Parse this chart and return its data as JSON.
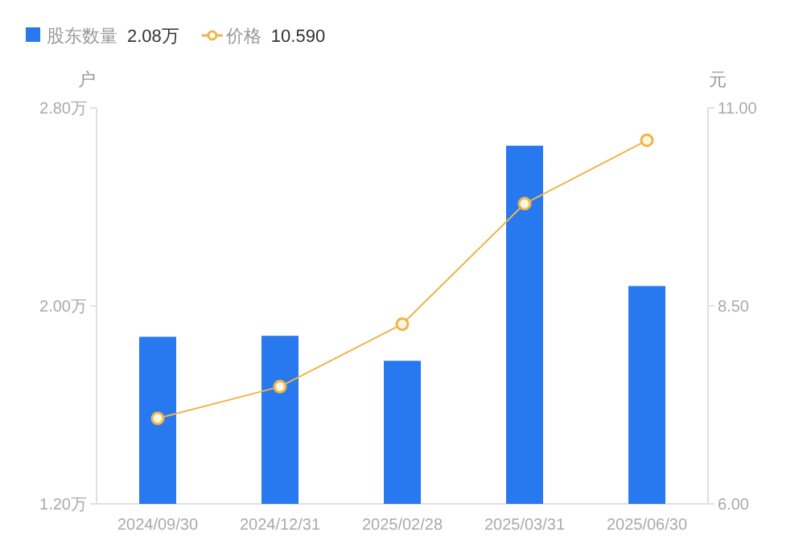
{
  "chart_data": {
    "type": "bar",
    "categories": [
      "2024/09/30",
      "2024/12/31",
      "2025/02/28",
      "2025/03/31",
      "2025/06/30"
    ],
    "series": [
      {
        "name": "股东数量",
        "color": "#2878f0",
        "values": [
          1.875,
          1.879,
          1.778,
          2.647,
          2.08
        ]
      },
      {
        "name": "价格",
        "type": "line",
        "axis": "y2",
        "color": "#f0b44a",
        "values": [
          7.08,
          7.48,
          8.27,
          9.79,
          10.59
        ]
      }
    ],
    "ylabel": "户",
    "y2label": "元",
    "ylim": [
      1.2,
      2.8
    ],
    "yticks": [
      {
        "value": 1.2,
        "label": "1.20万"
      },
      {
        "value": 2.0,
        "label": "2.00万"
      },
      {
        "value": 2.8,
        "label": "2.80万"
      }
    ],
    "y2lim": [
      6,
      11
    ],
    "y2ticks": [
      {
        "value": 6,
        "label": "6.00"
      },
      {
        "value": 8.5,
        "label": "8.50"
      },
      {
        "value": 11,
        "label": "11.00"
      }
    ],
    "annotations": [
      "2.08万",
      "10.590"
    ],
    "legend": "top left",
    "marker": "circle"
  }
}
